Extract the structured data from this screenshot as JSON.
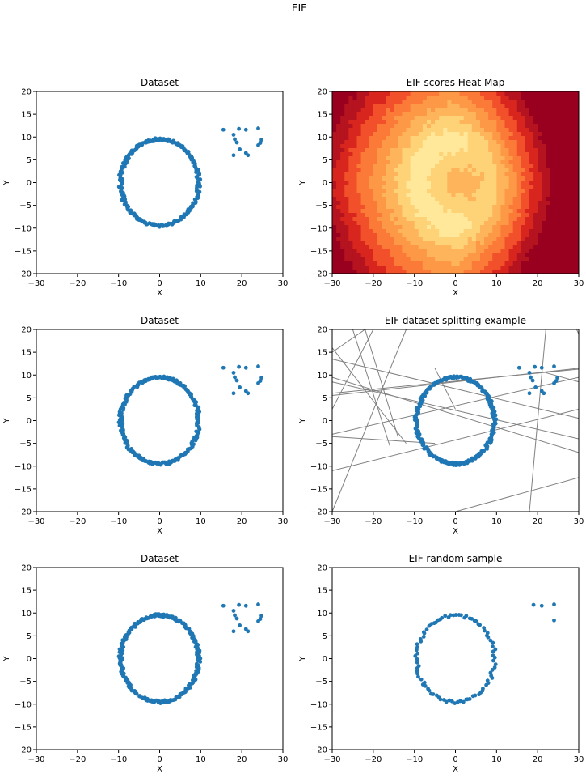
{
  "suptitle": "EIF",
  "colors": {
    "point": "#1f77b4",
    "split_line": "#808080",
    "heat": [
      "#fff9c4",
      "#ffe89a",
      "#fed276",
      "#feb45a",
      "#fd9846",
      "#fc7a38",
      "#f1502a",
      "#d8261f",
      "#b5131f",
      "#99001f"
    ]
  },
  "chart_data": [
    {
      "type": "scatter",
      "title": "Dataset",
      "xlabel": "X",
      "ylabel": "Y",
      "xlim": [
        -30,
        30
      ],
      "ylim": [
        -20,
        20
      ],
      "xticks": [
        "−30",
        "−20",
        "−10",
        "0",
        "10",
        "20",
        "30"
      ],
      "yticks": [
        "20",
        "15",
        "10",
        "5",
        "0",
        "−5",
        "−10",
        "−15",
        "−20"
      ],
      "ring": {
        "center": [
          0,
          0
        ],
        "radius_x": 9.5,
        "radius_y": 9.5,
        "n_points": 250
      },
      "outliers": [
        [
          15.5,
          11.6
        ],
        [
          18.0,
          10.5
        ],
        [
          18.3,
          9.5
        ],
        [
          18.8,
          8.8
        ],
        [
          19.3,
          11.8
        ],
        [
          19.5,
          7.3
        ],
        [
          21.0,
          11.6
        ],
        [
          21.0,
          6.5
        ],
        [
          21.5,
          6.0
        ],
        [
          24.0,
          11.9
        ],
        [
          24.0,
          8.2
        ],
        [
          24.5,
          8.7
        ],
        [
          24.8,
          9.4
        ],
        [
          18.0,
          6.0
        ]
      ]
    },
    {
      "type": "heatmap",
      "title": "EIF scores Heat Map",
      "xlabel": "X",
      "ylabel": "Y",
      "xlim": [
        -30,
        30
      ],
      "ylim": [
        -20,
        20
      ],
      "xticks": [
        "−30",
        "−20",
        "−10",
        "0",
        "10",
        "20",
        "30"
      ],
      "yticks": [
        "20",
        "15",
        "10",
        "5",
        "0",
        "−5",
        "−10",
        "−15",
        "−20"
      ],
      "center": [
        0,
        0
      ],
      "levels": 10
    },
    {
      "type": "scatter",
      "title": "Dataset",
      "xlabel": "X",
      "ylabel": "Y",
      "xlim": [
        -30,
        30
      ],
      "ylim": [
        -20,
        20
      ],
      "xticks": [
        "−30",
        "−20",
        "−10",
        "0",
        "10",
        "20",
        "30"
      ],
      "yticks": [
        "20",
        "15",
        "10",
        "5",
        "0",
        "−5",
        "−10",
        "−15",
        "−20"
      ],
      "ring": {
        "center": [
          0,
          0
        ],
        "radius_x": 9.5,
        "radius_y": 9.5,
        "n_points": 250
      },
      "outliers": [
        [
          15.5,
          11.6
        ],
        [
          18.0,
          10.5
        ],
        [
          18.3,
          9.5
        ],
        [
          18.8,
          8.8
        ],
        [
          19.3,
          11.8
        ],
        [
          19.5,
          7.3
        ],
        [
          21.0,
          11.6
        ],
        [
          21.0,
          6.5
        ],
        [
          21.5,
          6.0
        ],
        [
          24.0,
          11.9
        ],
        [
          24.0,
          8.2
        ],
        [
          24.5,
          8.7
        ],
        [
          24.8,
          9.4
        ],
        [
          18.0,
          6.0
        ]
      ]
    },
    {
      "type": "scatter",
      "title": "EIF dataset splitting example",
      "xlabel": "X",
      "ylabel": "Y",
      "xlim": [
        -30,
        30
      ],
      "ylim": [
        -20,
        20
      ],
      "xticks": [
        "−30",
        "−20",
        "−10",
        "0",
        "10",
        "20",
        "30"
      ],
      "yticks": [
        "20",
        "15",
        "10",
        "5",
        "0",
        "−5",
        "−10",
        "−15",
        "−20"
      ],
      "ring": {
        "center": [
          0,
          0
        ],
        "radius_x": 9.5,
        "radius_y": 9.5,
        "n_points": 250
      },
      "outliers": [
        [
          15.5,
          11.6
        ],
        [
          18.0,
          10.5
        ],
        [
          18.3,
          9.5
        ],
        [
          18.8,
          8.8
        ],
        [
          19.3,
          11.8
        ],
        [
          19.5,
          7.3
        ],
        [
          21.0,
          11.6
        ],
        [
          21.0,
          6.5
        ],
        [
          21.5,
          6.0
        ],
        [
          24.0,
          11.9
        ],
        [
          24.0,
          8.2
        ],
        [
          24.5,
          8.7
        ],
        [
          24.8,
          9.4
        ],
        [
          18.0,
          6.0
        ]
      ],
      "split_lines": [
        [
          [
            -30,
            5.5
          ],
          [
            30,
            11.5
          ]
        ],
        [
          [
            -30,
            6.0
          ],
          [
            30,
            11.3
          ]
        ],
        [
          [
            -30,
            9.5
          ],
          [
            30,
            -7.0
          ]
        ],
        [
          [
            -30,
            8.5
          ],
          [
            30,
            -4.0
          ]
        ],
        [
          [
            -30,
            13.5
          ],
          [
            30,
            0.5
          ]
        ],
        [
          [
            -30,
            -3.0
          ],
          [
            30,
            9.5
          ]
        ],
        [
          [
            -30,
            -11.0
          ],
          [
            30,
            2.5
          ]
        ],
        [
          [
            -30,
            -3.5
          ],
          [
            -5,
            -5.0
          ]
        ],
        [
          [
            -30,
            15.0
          ],
          [
            -22,
            20.0
          ]
        ],
        [
          [
            -30,
            2.5
          ],
          [
            -20,
            20.0
          ]
        ],
        [
          [
            -30,
            16.0
          ],
          [
            -12,
            -5.0
          ]
        ],
        [
          [
            -25,
            20.0
          ],
          [
            -16,
            -5.5
          ]
        ],
        [
          [
            -30,
            -20.0
          ],
          [
            -12,
            20.0
          ]
        ],
        [
          [
            -22,
            20.0
          ],
          [
            -14,
            -3.5
          ]
        ],
        [
          [
            18,
            -20.0
          ],
          [
            22,
            20.0
          ]
        ],
        [
          [
            0,
            -20.0
          ],
          [
            30,
            -12.5
          ]
        ],
        [
          [
            -5,
            11.5
          ],
          [
            0,
            2.5
          ]
        ],
        [
          [
            22,
            10.5
          ],
          [
            30,
            8.5
          ]
        ],
        [
          [
            29.5,
            20.0
          ],
          [
            30,
            19.0
          ]
        ]
      ]
    },
    {
      "type": "scatter",
      "title": "Dataset",
      "xlabel": "X",
      "ylabel": "Y",
      "xlim": [
        -30,
        30
      ],
      "ylim": [
        -20,
        20
      ],
      "xticks": [
        "−30",
        "−20",
        "−10",
        "0",
        "10",
        "20",
        "30"
      ],
      "yticks": [
        "20",
        "15",
        "10",
        "5",
        "0",
        "−5",
        "−10",
        "−15",
        "−20"
      ],
      "ring": {
        "center": [
          0,
          0
        ],
        "radius_x": 9.5,
        "radius_y": 9.5,
        "n_points": 250
      },
      "outliers": [
        [
          15.5,
          11.6
        ],
        [
          18.0,
          10.5
        ],
        [
          18.3,
          9.5
        ],
        [
          18.8,
          8.8
        ],
        [
          19.3,
          11.8
        ],
        [
          19.5,
          7.3
        ],
        [
          21.0,
          11.6
        ],
        [
          21.0,
          6.5
        ],
        [
          21.5,
          6.0
        ],
        [
          24.0,
          11.9
        ],
        [
          24.0,
          8.2
        ],
        [
          24.5,
          8.7
        ],
        [
          24.8,
          9.4
        ],
        [
          18.0,
          6.0
        ]
      ]
    },
    {
      "type": "scatter",
      "title": "EIF random sample",
      "xlabel": "X",
      "ylabel": "Y",
      "xlim": [
        -30,
        30
      ],
      "ylim": [
        -20,
        20
      ],
      "xticks": [
        "−30",
        "−20",
        "−10",
        "0",
        "10",
        "20",
        "30"
      ],
      "yticks": [
        "20",
        "15",
        "10",
        "5",
        "0",
        "−5",
        "−10",
        "−15",
        "−20"
      ],
      "ring": {
        "center": [
          0,
          0
        ],
        "radius_x": 9.5,
        "radius_y": 9.5,
        "n_points": 90
      },
      "outliers": [
        [
          19.0,
          11.8
        ],
        [
          21.0,
          11.6
        ],
        [
          24.0,
          11.9
        ],
        [
          24.0,
          8.4
        ]
      ]
    }
  ]
}
